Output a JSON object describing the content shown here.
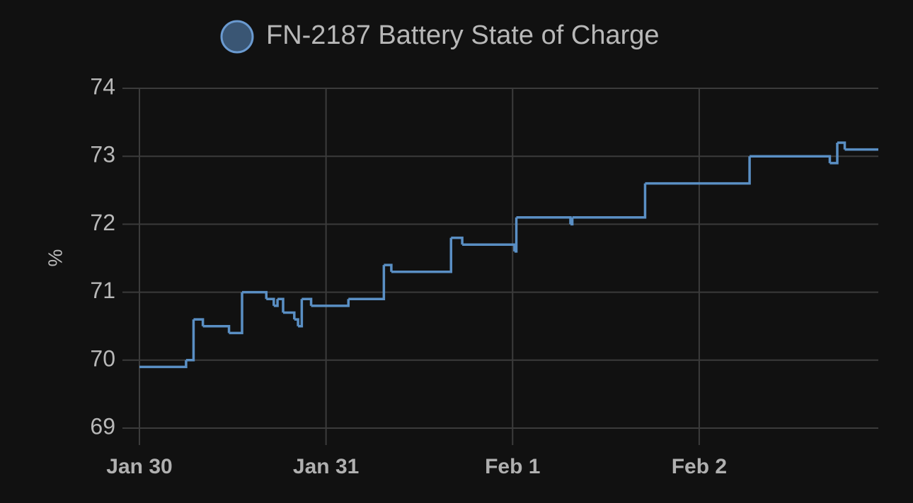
{
  "chart_data": {
    "type": "step-line",
    "legend": "FN-2187 Battery State of Charge",
    "y_label": "%",
    "series": [
      {
        "name": "FN-2187 Battery State of Charge",
        "color": "#5a8fc4",
        "x": [
          0,
          0.25,
          0.29,
          0.34,
          0.48,
          0.55,
          0.68,
          0.72,
          0.74,
          0.77,
          0.83,
          0.85,
          0.87,
          0.92,
          1.12,
          1.31,
          1.35,
          1.67,
          1.73,
          2.01,
          2.02,
          2.31,
          2.32,
          2.71,
          3.27,
          3.7,
          3.74,
          3.78,
          3.96
        ],
        "values": [
          69.9,
          70.0,
          70.6,
          70.5,
          70.4,
          71.0,
          70.9,
          70.8,
          70.9,
          70.7,
          70.6,
          70.5,
          70.9,
          70.8,
          70.9,
          71.4,
          71.3,
          71.8,
          71.7,
          71.6,
          72.1,
          72.0,
          72.1,
          72.6,
          73.0,
          72.9,
          73.2,
          73.1,
          73.1
        ]
      }
    ],
    "xlim": [
      0,
      3.96
    ],
    "xticks": [
      {
        "value": 0,
        "label": "Jan 30"
      },
      {
        "value": 1,
        "label": "Jan 31"
      },
      {
        "value": 2,
        "label": "Feb 1"
      },
      {
        "value": 3,
        "label": "Feb 2"
      }
    ],
    "ylim": [
      69,
      74
    ],
    "yticks": [
      69,
      70,
      71,
      72,
      73,
      74
    ],
    "grid": true
  }
}
